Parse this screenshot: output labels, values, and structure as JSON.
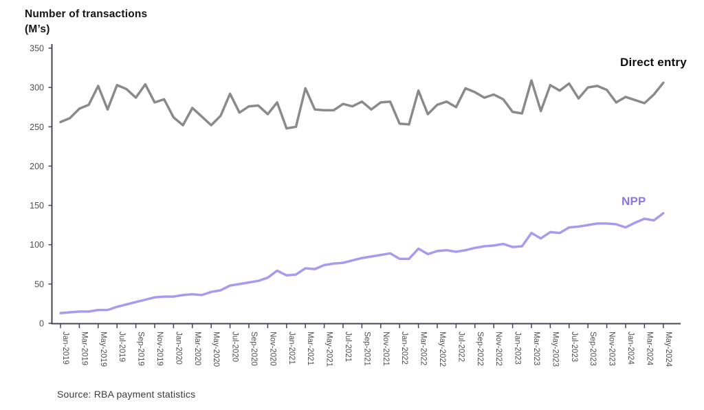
{
  "header": {
    "title_line1": "Number of transactions",
    "title_line2": "(M’s)"
  },
  "footer": {
    "source": "Source: RBA payment statistics"
  },
  "chart_data": {
    "type": "line",
    "title": "Number of transactions (M’s)",
    "ylabel": "Number of transactions (M's)",
    "ylim": [
      0,
      350
    ],
    "yticks": [
      0,
      50,
      100,
      150,
      200,
      250,
      300,
      350
    ],
    "grid": false,
    "x_frequency": "monthly",
    "legend_position": "end-of-line-labels",
    "axis_color": "#46435a",
    "tick_label_color": "#4f4f4f",
    "x": [
      "Jan-2019",
      "Feb-2019",
      "Mar-2019",
      "Apr-2019",
      "May-2019",
      "Jun-2019",
      "Jul-2019",
      "Aug-2019",
      "Sep-2019",
      "Oct-2019",
      "Nov-2019",
      "Dec-2019",
      "Jan-2020",
      "Feb-2020",
      "Mar-2020",
      "Apr-2020",
      "May-2020",
      "Jun-2020",
      "Jul-2020",
      "Aug-2020",
      "Sep-2020",
      "Oct-2020",
      "Nov-2020",
      "Dec-2020",
      "Jan-2021",
      "Feb-2021",
      "Mar-2021",
      "Apr-2021",
      "May-2021",
      "Jun-2021",
      "Jul-2021",
      "Aug-2021",
      "Sep-2021",
      "Oct-2021",
      "Nov-2021",
      "Dec-2021",
      "Jan-2022",
      "Feb-2022",
      "Mar-2022",
      "Apr-2022",
      "May-2022",
      "Jun-2022",
      "Jul-2022",
      "Aug-2022",
      "Sep-2022",
      "Oct-2022",
      "Nov-2022",
      "Dec-2022",
      "Jan-2023",
      "Feb-2023",
      "Mar-2023",
      "Apr-2023",
      "May-2023",
      "Jun-2023",
      "Jul-2023",
      "Aug-2023",
      "Sep-2023",
      "Oct-2023",
      "Nov-2023",
      "Dec-2023",
      "Jan-2024",
      "Feb-2024",
      "Mar-2024",
      "Apr-2024",
      "May-2024"
    ],
    "x_tick_labels": [
      "Jan-2019",
      "Mar-2019",
      "May-2019",
      "Jul-2019",
      "Sep-2019",
      "Nov-2019",
      "Jan-2020",
      "Mar-2020",
      "May-2020",
      "Jul-2020",
      "Sep-2020",
      "Nov-2020",
      "Jan-2021",
      "Mar-2021",
      "May-2021",
      "Jul-2021",
      "Sep-2021",
      "Nov-2021",
      "Jan-2022",
      "Mar-2022",
      "May-2022",
      "Jul-2022",
      "Sep-2022",
      "Nov-2022",
      "Jan-2023",
      "Mar-2023",
      "May-2023",
      "Jul-2023",
      "Sep-2023",
      "Nov-2023",
      "Jan-2024",
      "Mar-2024",
      "May-2024"
    ],
    "series": [
      {
        "name": "Direct entry",
        "color": "#8a8a8a",
        "label_color": "#0e0e0e",
        "values": [
          256,
          261,
          273,
          278,
          302,
          272,
          303,
          298,
          287,
          304,
          281,
          285,
          262,
          252,
          274,
          263,
          252,
          264,
          292,
          268,
          276,
          277,
          266,
          281,
          248,
          250,
          299,
          272,
          271,
          271,
          279,
          276,
          282,
          272,
          281,
          282,
          254,
          253,
          296,
          266,
          278,
          282,
          275,
          299,
          294,
          287,
          291,
          285,
          269,
          267,
          309,
          270,
          303,
          296,
          305,
          286,
          300,
          302,
          297,
          281,
          288,
          284,
          280,
          291,
          306
        ]
      },
      {
        "name": "NPP",
        "color": "#a59cf0",
        "label_color": "#8a76ec",
        "values": [
          13,
          14,
          15,
          15,
          17,
          17,
          21,
          24,
          27,
          30,
          33,
          34,
          34,
          36,
          37,
          36,
          40,
          42,
          48,
          50,
          52,
          54,
          58,
          67,
          61,
          62,
          70,
          69,
          74,
          76,
          77,
          80,
          83,
          85,
          87,
          89,
          82,
          82,
          95,
          88,
          92,
          93,
          91,
          93,
          96,
          98,
          99,
          101,
          97,
          98,
          115,
          108,
          116,
          115,
          122,
          123,
          125,
          127,
          127,
          126,
          122,
          128,
          133,
          131,
          140
        ]
      }
    ]
  }
}
